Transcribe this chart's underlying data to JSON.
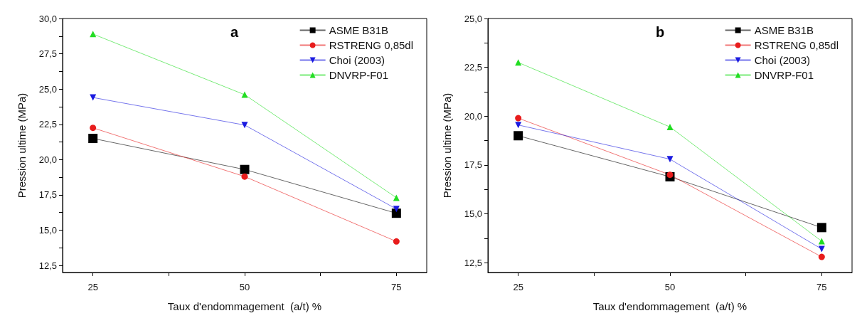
{
  "chart_data": [
    {
      "type": "line",
      "title": "a",
      "xlabel": "Taux d'endommagement  (a/t) %",
      "ylabel": "Pression ultime (MPa)",
      "x": [
        25,
        50,
        75
      ],
      "xlim": [
        20,
        80
      ],
      "xticks": [
        25,
        50,
        75
      ],
      "ylim": [
        12,
        30
      ],
      "yticks": [
        {
          "value": 12.5,
          "label": "12,5"
        },
        {
          "value": 15,
          "label": "15,0"
        },
        {
          "value": 17.5,
          "label": "17,5"
        },
        {
          "value": 20,
          "label": "20,0"
        },
        {
          "value": 22.5,
          "label": "22,5"
        },
        {
          "value": 25,
          "label": "25,0"
        },
        {
          "value": 27.5,
          "label": "27,5"
        },
        {
          "value": 30,
          "label": "30,0"
        }
      ],
      "grid": false,
      "legend": "top right",
      "series": [
        {
          "name": "ASME B31B",
          "color": "#000000",
          "marker": "square",
          "values": [
            21.5,
            19.3,
            16.2
          ]
        },
        {
          "name": "RSTRENG 0,85dl",
          "color": "#e81c1c",
          "marker": "circle",
          "values": [
            22.25,
            18.8,
            14.2
          ]
        },
        {
          "name": "Choi (2003)",
          "color": "#1a1ae0",
          "marker": "triangle_down",
          "values": [
            24.4,
            22.45,
            16.5
          ]
        },
        {
          "name": "DNVRP-F01",
          "color": "#22dd22",
          "marker": "triangle",
          "values": [
            28.9,
            24.6,
            17.3
          ]
        }
      ]
    },
    {
      "type": "line",
      "title": "b",
      "xlabel": "Taux d'endommagement  (a/t) %",
      "ylabel": "Pression ultime (MPa)",
      "x": [
        25,
        50,
        75
      ],
      "xlim": [
        20,
        80
      ],
      "xticks": [
        25,
        50,
        75
      ],
      "ylim": [
        12,
        25
      ],
      "yticks": [
        {
          "value": 12.5,
          "label": "12,5"
        },
        {
          "value": 15,
          "label": "15,0"
        },
        {
          "value": 17.5,
          "label": "17,5"
        },
        {
          "value": 20,
          "label": "20,0"
        },
        {
          "value": 22.5,
          "label": "22,5"
        },
        {
          "value": 25,
          "label": "25,0"
        }
      ],
      "grid": false,
      "legend": "top right",
      "series": [
        {
          "name": "ASME B31B",
          "color": "#000000",
          "marker": "square",
          "values": [
            19.0,
            16.9,
            14.3
          ]
        },
        {
          "name": "RSTRENG 0,85dl",
          "color": "#e81c1c",
          "marker": "circle",
          "values": [
            19.9,
            17.0,
            12.8
          ]
        },
        {
          "name": "Choi (2003)",
          "color": "#1a1ae0",
          "marker": "triangle_down",
          "values": [
            19.55,
            17.8,
            13.2
          ]
        },
        {
          "name": "DNVRP-F01",
          "color": "#22dd22",
          "marker": "triangle",
          "values": [
            22.75,
            19.45,
            13.6
          ]
        }
      ]
    }
  ]
}
